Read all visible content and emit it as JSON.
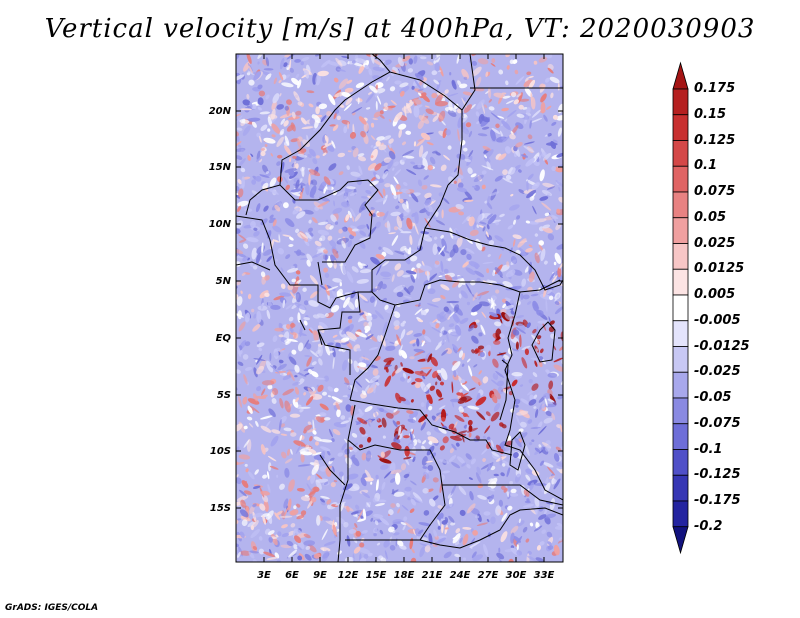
{
  "title": "Vertical velocity [m/s] at 400hPa, VT: 2020030903",
  "footer": "GrADS: IGES/COLA",
  "map": {
    "lat_labels": [
      "20N",
      "15N",
      "10N",
      "5N",
      "EQ",
      "5S",
      "10S",
      "15S"
    ],
    "lon_labels": [
      "3E",
      "6E",
      "9E",
      "12E",
      "15E",
      "18E",
      "21E",
      "24E",
      "27E",
      "30E",
      "33E"
    ]
  },
  "colorbar": {
    "labels": [
      "0.175",
      "0.15",
      "0.125",
      "0.1",
      "0.075",
      "0.05",
      "0.025",
      "0.0125",
      "0.005",
      "-0.005",
      "-0.0125",
      "-0.025",
      "-0.05",
      "-0.075",
      "-0.1",
      "-0.125",
      "-0.175",
      "-0.2"
    ],
    "colors": [
      "#a41414",
      "#b52020",
      "#c83030",
      "#d44848",
      "#e06464",
      "#e88282",
      "#f0a0a0",
      "#f7c6c6",
      "#fce4e4",
      "#ffffff",
      "#e4e4fc",
      "#c8c8f4",
      "#a8a8ec",
      "#8a8ae2",
      "#6e6ed8",
      "#5050c8",
      "#3636b4",
      "#2424a0",
      "#12127e"
    ]
  }
}
